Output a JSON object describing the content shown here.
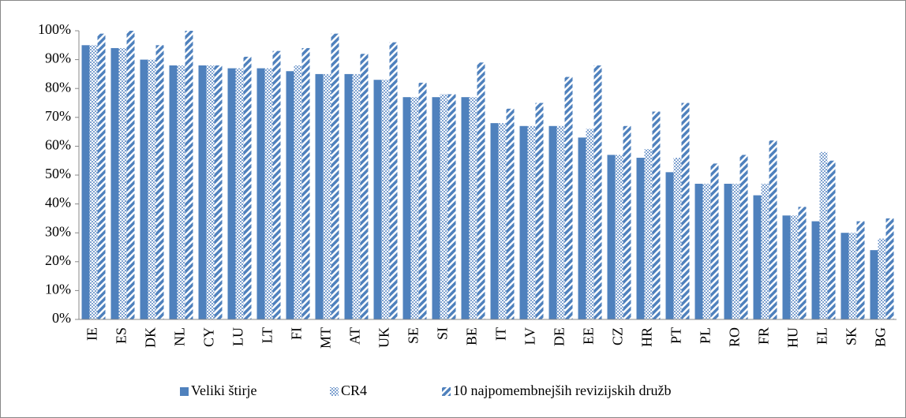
{
  "chart_data": {
    "type": "bar",
    "categories": [
      "IE",
      "ES",
      "DK",
      "NL",
      "CY",
      "LU",
      "LT",
      "FI",
      "MT",
      "AT",
      "UK",
      "SE",
      "SI",
      "BE",
      "IT",
      "LV",
      "DE",
      "EE",
      "CZ",
      "HR",
      "PT",
      "PL",
      "RO",
      "FR",
      "HU",
      "EL",
      "SK",
      "BG"
    ],
    "series": [
      {
        "name": "Veliki štirje",
        "color": "#4f81bd",
        "pattern": "solid",
        "values": [
          95,
          94,
          90,
          88,
          88,
          87,
          87,
          86,
          85,
          85,
          83,
          77,
          77,
          77,
          68,
          67,
          67,
          63,
          57,
          56,
          51,
          47,
          47,
          43,
          36,
          34,
          30,
          24
        ]
      },
      {
        "name": "CR4",
        "color": "#4f81bd",
        "pattern": "checker",
        "values": [
          95,
          94,
          90,
          88,
          88,
          87,
          87,
          88,
          85,
          85,
          83,
          77,
          78,
          77,
          68,
          67,
          67,
          66,
          57,
          59,
          56,
          47,
          47,
          47,
          36,
          58,
          30,
          28
        ]
      },
      {
        "name": "10 najpomembnejših revizijskih družb",
        "color": "#4f81bd",
        "pattern": "stripes",
        "values": [
          99,
          100,
          95,
          100,
          88,
          91,
          93,
          94,
          99,
          92,
          96,
          82,
          78,
          89,
          73,
          75,
          84,
          88,
          67,
          72,
          75,
          54,
          57,
          62,
          39,
          55,
          34,
          35
        ]
      }
    ],
    "ylim": [
      0,
      100
    ],
    "yticks": [
      {
        "value": 0,
        "label": "0%"
      },
      {
        "value": 10,
        "label": "10%"
      },
      {
        "value": 20,
        "label": "20%"
      },
      {
        "value": 30,
        "label": "30%"
      },
      {
        "value": 40,
        "label": "40%"
      },
      {
        "value": 50,
        "label": "50%"
      },
      {
        "value": 60,
        "label": "60%"
      },
      {
        "value": 70,
        "label": "70%"
      },
      {
        "value": 80,
        "label": "80%"
      },
      {
        "value": 90,
        "label": "90%"
      },
      {
        "value": 100,
        "label": "100%"
      }
    ],
    "grid": false,
    "legend": "bottom"
  }
}
